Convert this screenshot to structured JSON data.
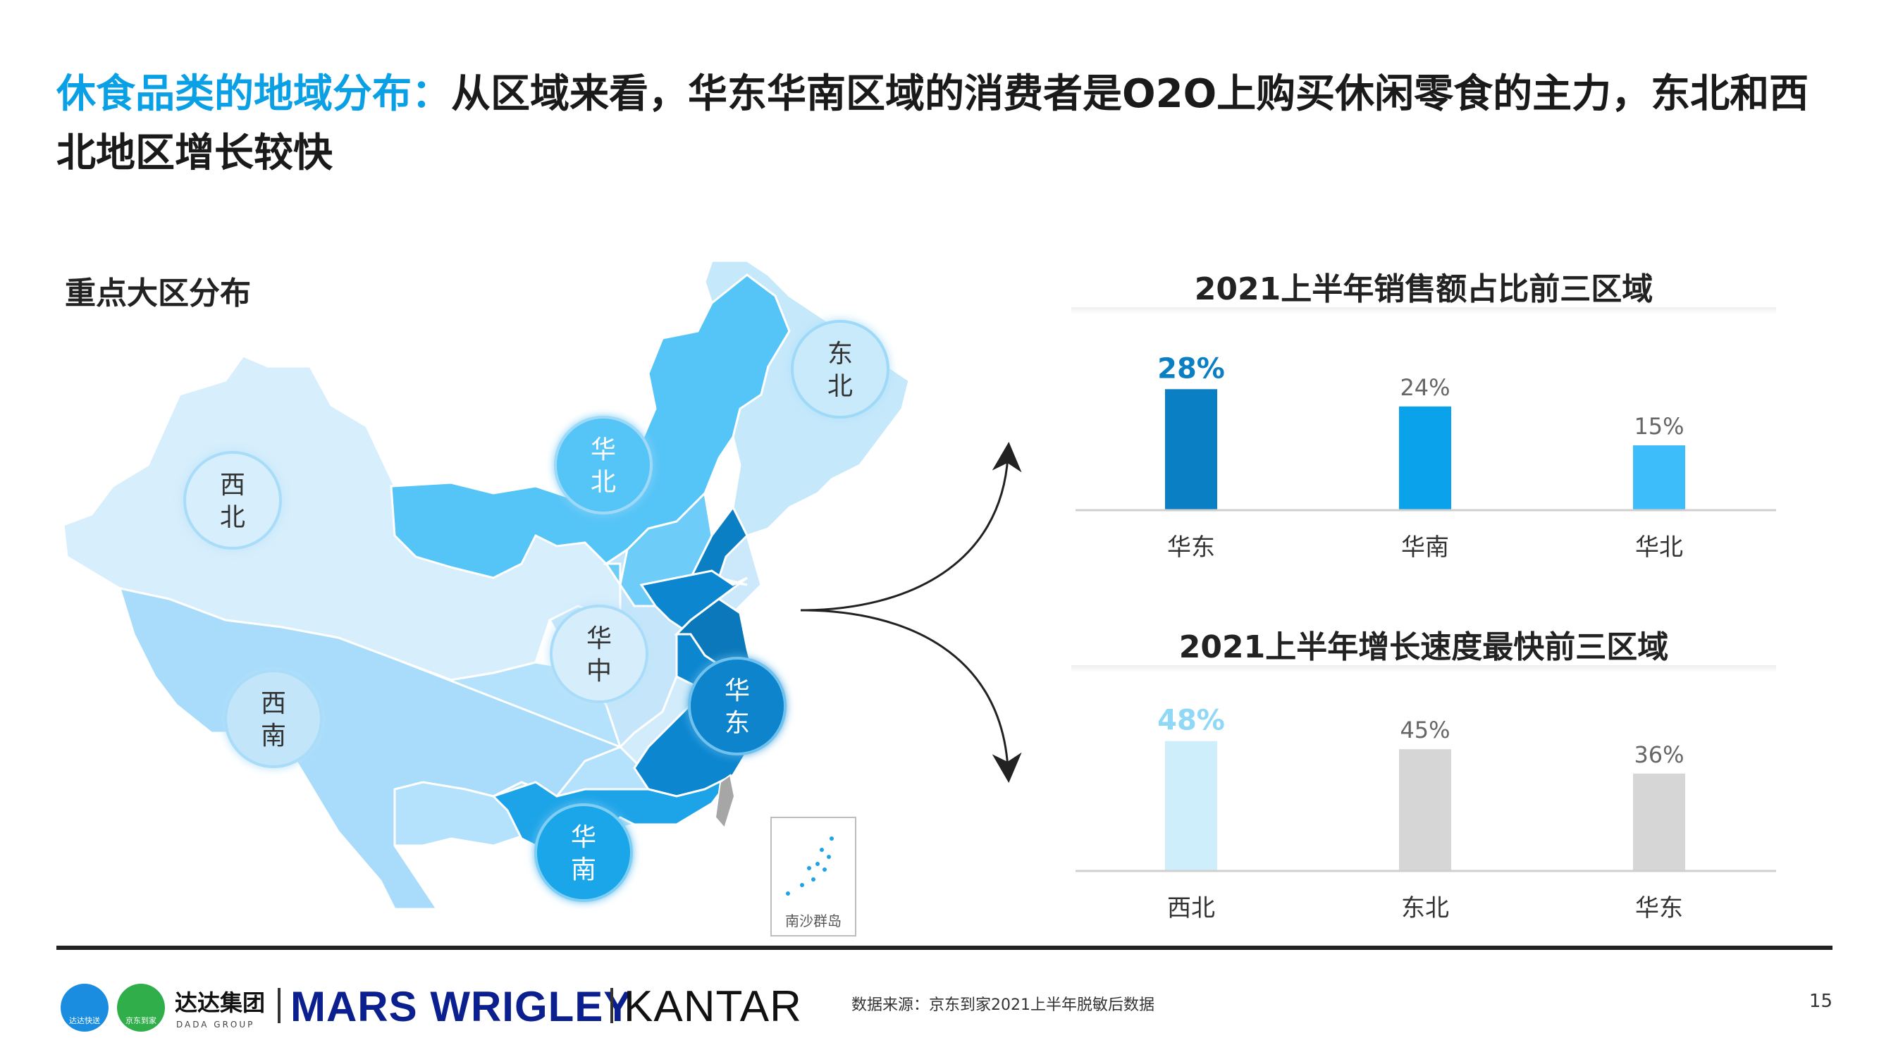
{
  "title": {
    "highlight": "休食品类的地域分布：",
    "text": "从区域来看，华东华南区域的消费者是O2O上购买休闲零食的主力，东北和西北地区增长较快"
  },
  "map": {
    "label": "重点大区分布",
    "regions": [
      {
        "name": "东\n北",
        "line1": "东",
        "line2": "北"
      },
      {
        "name": "华\n北",
        "line1": "华",
        "line2": "北"
      },
      {
        "name": "西\n北",
        "line1": "西",
        "line2": "北"
      },
      {
        "name": "华\n中",
        "line1": "华",
        "line2": "中"
      },
      {
        "name": "西\n南",
        "line1": "西",
        "line2": "南"
      },
      {
        "name": "华\n东",
        "line1": "华",
        "line2": "东"
      },
      {
        "name": "华\n南",
        "line1": "华",
        "line2": "南"
      }
    ],
    "inset_label": "南沙群岛"
  },
  "chart_data": [
    {
      "type": "bar",
      "title": "2021上半年销售额占比前三区域",
      "categories": [
        "华东",
        "华南",
        "华北"
      ],
      "values": [
        28,
        24,
        15
      ],
      "value_labels": [
        "28%",
        "24%",
        "15%"
      ],
      "colors": [
        "#0a7fc4",
        "#0aa2ea",
        "#3dbefa"
      ],
      "label_colors": [
        "#0a7fc4",
        "#666666",
        "#666666"
      ],
      "ylim": [
        0,
        30
      ],
      "grid": false
    },
    {
      "type": "bar",
      "title": "2021上半年增长速度最快前三区域",
      "categories": [
        "西北",
        "东北",
        "华东"
      ],
      "values": [
        48,
        45,
        36
      ],
      "value_labels": [
        "48%",
        "45%",
        "36%"
      ],
      "colors": [
        "#cfeefb",
        "#d6d6d6",
        "#d6d6d6"
      ],
      "label_colors": [
        "#8fd8f6",
        "#666666",
        "#666666"
      ],
      "ylim": [
        0,
        50
      ],
      "grid": false
    }
  ],
  "footer": {
    "dada_text": "达达集团",
    "dada_sub": "DADA GROUP",
    "dada_icon1_label": "达达快送",
    "dada_icon2_label": "京东到家",
    "mars": "MARS WRIGLEY",
    "kantar": "KANTAR",
    "source": "数据来源：京东到家2021上半年脱敏后数据",
    "page": "15"
  }
}
